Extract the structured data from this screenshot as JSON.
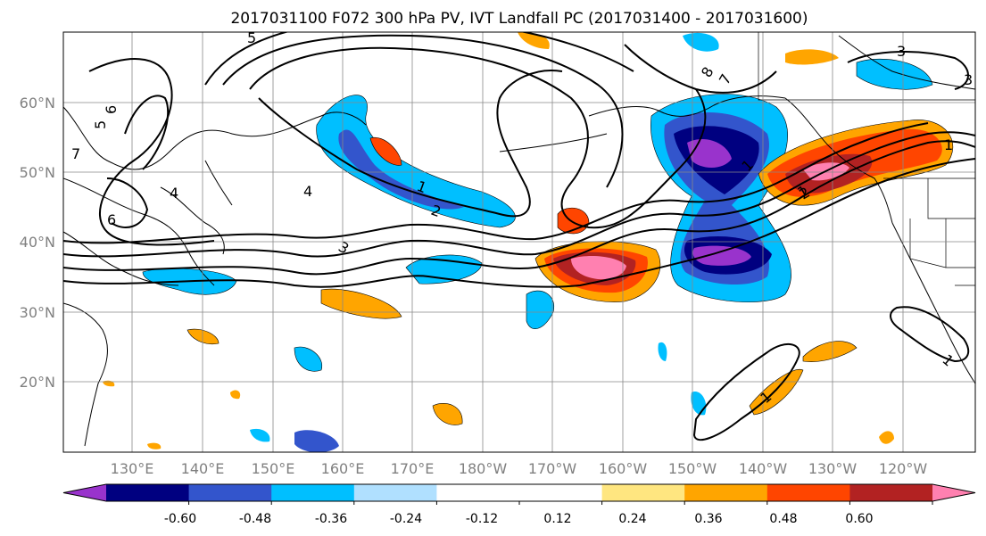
{
  "title": "2017031100 F072 300 hPa PV, IVT Landfall PC (2017031400 - 2017031600)",
  "lat_labels": [
    "60°N",
    "50°N",
    "40°N",
    "30°N",
    "20°N"
  ],
  "lon_labels": [
    "130°E",
    "140°E",
    "150°E",
    "160°E",
    "170°E",
    "180°W",
    "170°W",
    "160°W",
    "150°W",
    "140°W",
    "130°W",
    "120°W"
  ],
  "colorbar": {
    "colors": [
      "#9933cc",
      "#000080",
      "#3355cc",
      "#00bfff",
      "#b0e0ff",
      "#ffffff",
      "#ffffff",
      "#ffe680",
      "#ffa500",
      "#ff4500",
      "#b22222",
      "#ff80b0"
    ],
    "tick_labels": [
      "-0.60",
      "-0.48",
      "-0.36",
      "-0.24",
      "-0.12",
      "0.12",
      "0.24",
      "0.36",
      "0.48",
      "0.60"
    ]
  },
  "contour_labels": [
    "1",
    "2",
    "3",
    "4",
    "5",
    "6",
    "7",
    "1",
    "4",
    "5",
    "6",
    "1",
    "2",
    "1",
    "7",
    "8",
    "3",
    "3",
    "1",
    "1"
  ]
}
